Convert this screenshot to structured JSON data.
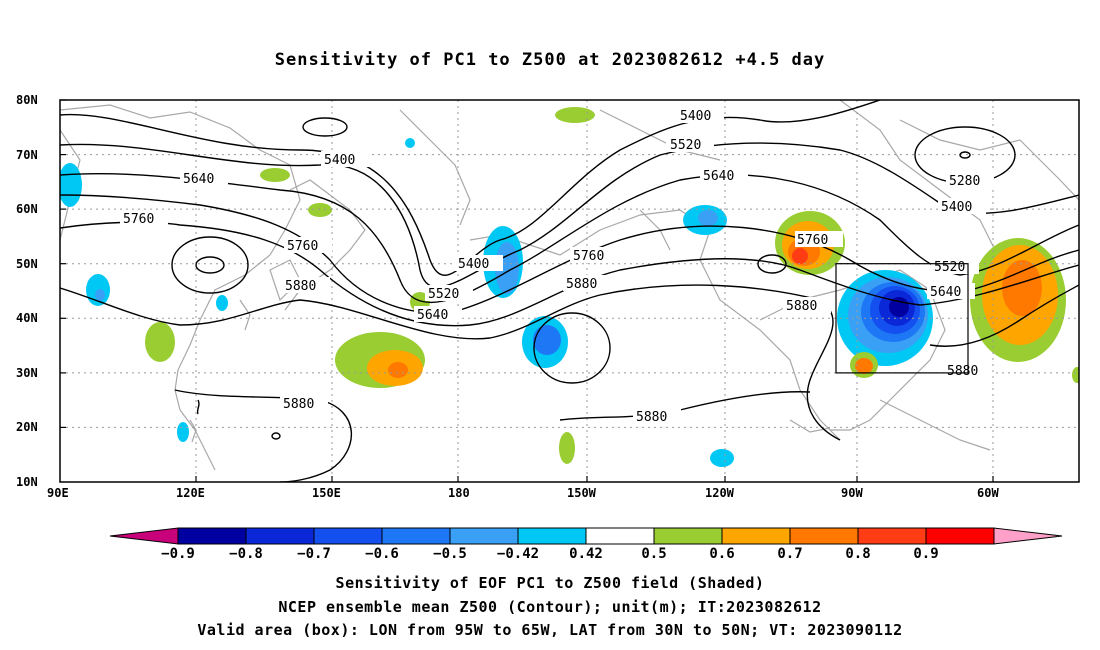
{
  "title": "Sensitivity of PC1 to Z500 at 2023082612 +4.5 day",
  "lat_ticks": [
    "80N",
    "70N",
    "60N",
    "50N",
    "40N",
    "30N",
    "20N",
    "10N"
  ],
  "lon_ticks": [
    "90E",
    "120E",
    "150E",
    "180",
    "150W",
    "120W",
    "90W",
    "60W"
  ],
  "contour_labels": [
    "5400",
    "5520",
    "5640",
    "5760",
    "5880",
    "5280"
  ],
  "colorbar": {
    "labels": [
      "-0.9",
      "-0.8",
      "-0.7",
      "-0.6",
      "-0.5",
      "-0.42",
      "0.42",
      "0.5",
      "0.6",
      "0.7",
      "0.8",
      "0.9"
    ],
    "colors": [
      "#c8007a",
      "#0000a0",
      "#0a28d8",
      "#1450f0",
      "#1e78f5",
      "#3aa0f5",
      "#00c8f5",
      "#ffffff",
      "#9acd32",
      "#ffa500",
      "#ff7800",
      "#ff3c14",
      "#ff0000",
      "#ffa0c8"
    ]
  },
  "captions": {
    "line1": "Sensitivity of EOF PC1 to Z500 field (Shaded)",
    "line2": "NCEP ensemble mean Z500 (Contour); unit(m); IT:2023082612",
    "line3": "Valid area (box): LON from 95W to 65W, LAT from 30N to 50N; VT: 2023090112"
  }
}
